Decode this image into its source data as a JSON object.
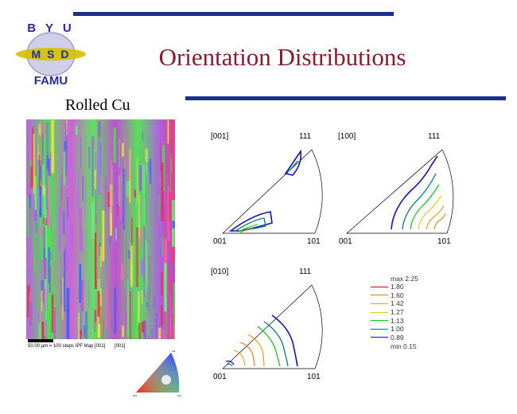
{
  "slide": {
    "title": "Orientation Distributions",
    "subtitle": "Rolled Cu",
    "logo": {
      "top": "B Y U",
      "middle": "M S D",
      "bottom": "FAMU"
    },
    "map_caption": "50.00 µm = 100 steps   IPF Map [001]",
    "map_caption_small": "[001]",
    "key_labels": {
      "top": "111",
      "left": "001",
      "right": "101"
    }
  },
  "pole_figures": [
    {
      "direction": "[001]",
      "corner_111": "111",
      "corner_001": "001",
      "corner_101": "101"
    },
    {
      "direction": "[100]",
      "corner_111": "111",
      "corner_001": "001",
      "corner_101": "101"
    },
    {
      "direction": "[010]",
      "corner_111": "111",
      "corner_001": "001",
      "corner_101": "101"
    }
  ],
  "legend": {
    "max_label": "max 2.25",
    "min_label": "min 0.15",
    "levels": [
      {
        "value": "1.80",
        "color": "#d00000"
      },
      {
        "value": "1.60",
        "color": "#f07000"
      },
      {
        "value": "1.42",
        "color": "#f0a000"
      },
      {
        "value": "1.27",
        "color": "#d8d000"
      },
      {
        "value": "1.13",
        "color": "#00d000"
      },
      {
        "value": "1.00",
        "color": "#008070"
      },
      {
        "value": "0.89",
        "color": "#1010c0"
      }
    ]
  },
  "colors": {
    "title": "#8b1a2b",
    "rule": "#1c2f8a",
    "logo_letters": "#2a2aa0",
    "logo_band": "#d4c000"
  }
}
